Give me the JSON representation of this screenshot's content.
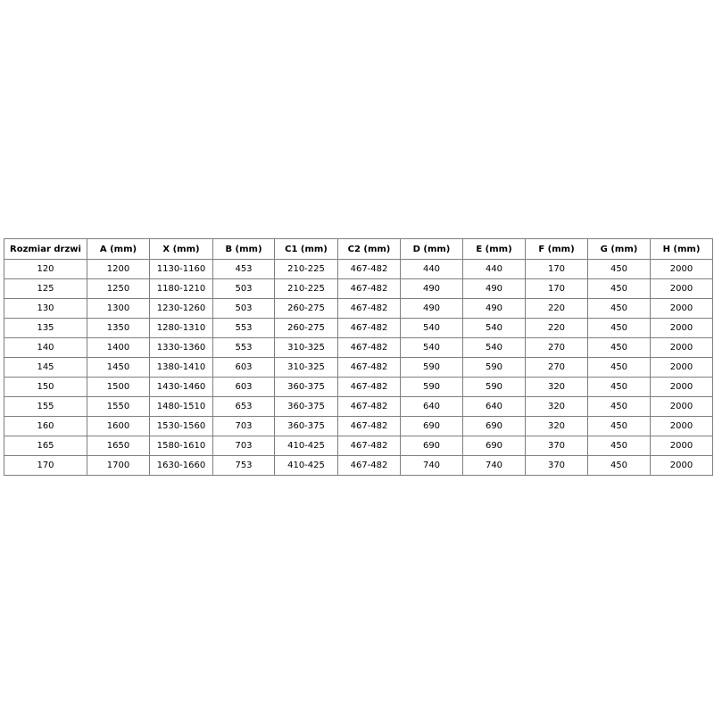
{
  "table": {
    "header": [
      "Rozmiar drzwi",
      "A (mm)",
      "X (mm)",
      "B (mm)",
      "C1 (mm)",
      "C2 (mm)",
      "D (mm)",
      "E (mm)",
      "F (mm)",
      "G (mm)",
      "H (mm)"
    ],
    "rows": [
      [
        120,
        1200,
        "1130-1160",
        453,
        "210-225",
        "467-482",
        440,
        440,
        170,
        450,
        2000
      ],
      [
        125,
        1250,
        "1180-1210",
        503,
        "210-225",
        "467-482",
        490,
        490,
        170,
        450,
        2000
      ],
      [
        130,
        1300,
        "1230-1260",
        503,
        "260-275",
        "467-482",
        490,
        490,
        220,
        450,
        2000
      ],
      [
        135,
        1350,
        "1280-1310",
        553,
        "260-275",
        "467-482",
        540,
        540,
        220,
        450,
        2000
      ],
      [
        140,
        1400,
        "1330-1360",
        553,
        "310-325",
        "467-482",
        540,
        540,
        270,
        450,
        2000
      ],
      [
        145,
        1450,
        "1380-1410",
        603,
        "310-325",
        "467-482",
        590,
        590,
        270,
        450,
        2000
      ],
      [
        150,
        1500,
        "1430-1460",
        603,
        "360-375",
        "467-482",
        590,
        590,
        320,
        450,
        2000
      ],
      [
        155,
        1550,
        "1480-1510",
        653,
        "360-375",
        "467-482",
        640,
        640,
        320,
        450,
        2000
      ],
      [
        160,
        1600,
        "1530-1560",
        703,
        "360-375",
        "467-482",
        690,
        690,
        320,
        450,
        2000
      ],
      [
        165,
        1650,
        "1580-1610",
        703,
        "410-425",
        "467-482",
        690,
        690,
        370,
        450,
        2000
      ],
      [
        170,
        1700,
        "1630-1660",
        753,
        "410-425",
        "467-482",
        740,
        740,
        370,
        450,
        2000
      ]
    ]
  }
}
